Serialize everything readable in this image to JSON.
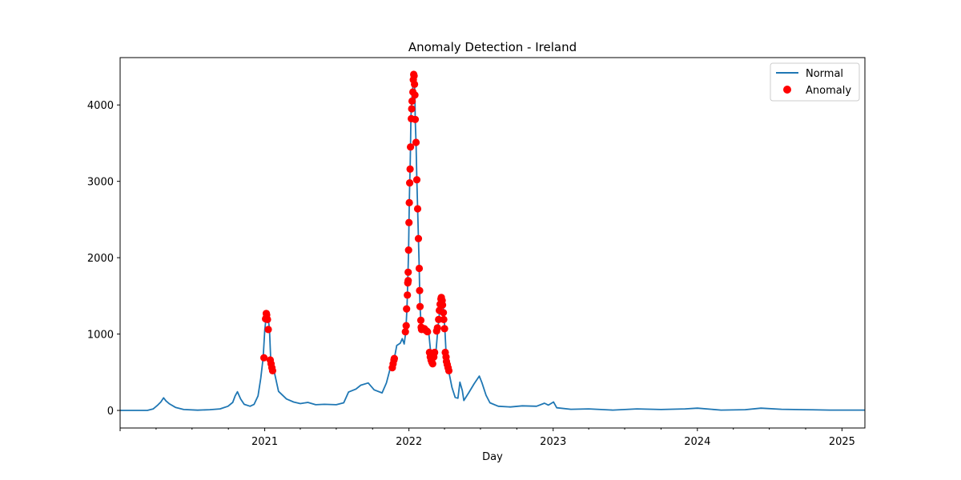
{
  "chart_data": {
    "type": "line",
    "title": "Anomaly Detection - Ireland",
    "xlabel": "Day",
    "ylabel": "",
    "xlim": [
      "2020-01-01",
      "2025-02-28"
    ],
    "ylim": [
      -230,
      4620
    ],
    "x_ticks": [
      "2021",
      "2022",
      "2023",
      "2024",
      "2025"
    ],
    "y_ticks": [
      0,
      1000,
      2000,
      3000,
      4000
    ],
    "grid": false,
    "legend": {
      "position": "top-right",
      "entries": [
        "Normal",
        "Anomaly"
      ]
    },
    "colors": {
      "normal": "#1f77b4",
      "anomaly": "#ff0000"
    },
    "series": [
      {
        "name": "Normal",
        "kind": "line",
        "points": [
          [
            "2020-01-01",
            0
          ],
          [
            "2020-02-15",
            0
          ],
          [
            "2020-03-10",
            0
          ],
          [
            "2020-03-25",
            20
          ],
          [
            "2020-04-05",
            70
          ],
          [
            "2020-04-13",
            110
          ],
          [
            "2020-04-20",
            165
          ],
          [
            "2020-04-26",
            125
          ],
          [
            "2020-05-05",
            85
          ],
          [
            "2020-05-20",
            40
          ],
          [
            "2020-06-10",
            12
          ],
          [
            "2020-07-15",
            4
          ],
          [
            "2020-08-15",
            10
          ],
          [
            "2020-09-10",
            20
          ],
          [
            "2020-09-30",
            55
          ],
          [
            "2020-10-12",
            105
          ],
          [
            "2020-10-18",
            190
          ],
          [
            "2020-10-24",
            245
          ],
          [
            "2020-11-01",
            150
          ],
          [
            "2020-11-10",
            80
          ],
          [
            "2020-11-25",
            55
          ],
          [
            "2020-12-05",
            80
          ],
          [
            "2020-12-15",
            190
          ],
          [
            "2020-12-22",
            420
          ],
          [
            "2020-12-28",
            690
          ],
          [
            "2021-01-01",
            1050
          ],
          [
            "2021-01-04",
            1200
          ],
          [
            "2021-01-07",
            1280
          ],
          [
            "2021-01-10",
            1200
          ],
          [
            "2021-01-13",
            1060
          ],
          [
            "2021-01-16",
            680
          ],
          [
            "2021-01-19",
            600
          ],
          [
            "2021-01-22",
            560
          ],
          [
            "2021-01-25",
            510
          ],
          [
            "2021-02-05",
            250
          ],
          [
            "2021-02-25",
            150
          ],
          [
            "2021-03-15",
            110
          ],
          [
            "2021-04-01",
            90
          ],
          [
            "2021-04-20",
            105
          ],
          [
            "2021-05-10",
            75
          ],
          [
            "2021-06-01",
            80
          ],
          [
            "2021-07-01",
            75
          ],
          [
            "2021-07-20",
            100
          ],
          [
            "2021-08-01",
            240
          ],
          [
            "2021-08-20",
            280
          ],
          [
            "2021-09-01",
            330
          ],
          [
            "2021-09-20",
            360
          ],
          [
            "2021-10-05",
            270
          ],
          [
            "2021-10-25",
            230
          ],
          [
            "2021-11-05",
            360
          ],
          [
            "2021-11-15",
            560
          ],
          [
            "2021-11-20",
            650
          ],
          [
            "2021-11-25",
            680
          ],
          [
            "2021-12-01",
            850
          ],
          [
            "2021-12-10",
            880
          ],
          [
            "2021-12-15",
            940
          ],
          [
            "2021-12-20",
            870
          ],
          [
            "2021-12-24",
            1030
          ],
          [
            "2021-12-27",
            1340
          ],
          [
            "2021-12-29",
            1700
          ],
          [
            "2021-12-31",
            2100
          ],
          [
            "2022-01-01",
            2460
          ],
          [
            "2022-01-02",
            2720
          ],
          [
            "2022-01-03",
            2980
          ],
          [
            "2022-01-04",
            3160
          ],
          [
            "2022-01-05",
            3450
          ],
          [
            "2022-01-06",
            3820
          ],
          [
            "2022-01-07",
            3950
          ],
          [
            "2022-01-08",
            4060
          ],
          [
            "2022-01-10",
            4180
          ],
          [
            "2022-01-12",
            4320
          ],
          [
            "2022-01-14",
            4400
          ],
          [
            "2022-01-15",
            4280
          ],
          [
            "2022-01-16",
            4140
          ],
          [
            "2022-01-17",
            3800
          ],
          [
            "2022-01-19",
            3510
          ],
          [
            "2022-01-21",
            3020
          ],
          [
            "2022-01-23",
            2640
          ],
          [
            "2022-01-25",
            2250
          ],
          [
            "2022-01-27",
            1860
          ],
          [
            "2022-01-28",
            1570
          ],
          [
            "2022-01-29",
            1360
          ],
          [
            "2022-01-31",
            1180
          ],
          [
            "2022-02-02",
            1090
          ],
          [
            "2022-02-05",
            1070
          ],
          [
            "2022-02-10",
            1060
          ],
          [
            "2022-02-15",
            1040
          ],
          [
            "2022-02-20",
            1030
          ],
          [
            "2022-02-25",
            760
          ],
          [
            "2022-03-01",
            650
          ],
          [
            "2022-03-05",
            620
          ],
          [
            "2022-03-10",
            750
          ],
          [
            "2022-03-15",
            1060
          ],
          [
            "2022-03-20",
            1310
          ],
          [
            "2022-03-25",
            1470
          ],
          [
            "2022-03-28",
            1420
          ],
          [
            "2022-03-31",
            1200
          ],
          [
            "2022-04-02",
            1070
          ],
          [
            "2022-04-05",
            750
          ],
          [
            "2022-04-08",
            640
          ],
          [
            "2022-04-11",
            530
          ],
          [
            "2022-04-20",
            300
          ],
          [
            "2022-04-28",
            170
          ],
          [
            "2022-05-05",
            160
          ],
          [
            "2022-05-10",
            370
          ],
          [
            "2022-05-16",
            260
          ],
          [
            "2022-05-20",
            130
          ],
          [
            "2022-06-01",
            230
          ],
          [
            "2022-06-15",
            350
          ],
          [
            "2022-06-28",
            450
          ],
          [
            "2022-07-05",
            360
          ],
          [
            "2022-07-15",
            200
          ],
          [
            "2022-07-25",
            100
          ],
          [
            "2022-08-15",
            55
          ],
          [
            "2022-09-15",
            45
          ],
          [
            "2022-10-15",
            60
          ],
          [
            "2022-11-20",
            55
          ],
          [
            "2022-12-10",
            95
          ],
          [
            "2022-12-20",
            70
          ],
          [
            "2023-01-02",
            110
          ],
          [
            "2023-01-10",
            35
          ],
          [
            "2023-02-15",
            15
          ],
          [
            "2023-04-01",
            20
          ],
          [
            "2023-06-01",
            5
          ],
          [
            "2023-08-01",
            20
          ],
          [
            "2023-10-01",
            12
          ],
          [
            "2023-12-01",
            20
          ],
          [
            "2024-01-01",
            30
          ],
          [
            "2024-03-01",
            5
          ],
          [
            "2024-05-01",
            10
          ],
          [
            "2024-06-10",
            30
          ],
          [
            "2024-08-01",
            15
          ],
          [
            "2024-10-01",
            10
          ],
          [
            "2024-12-01",
            5
          ],
          [
            "2025-02-28",
            5
          ]
        ]
      },
      {
        "name": "Anomaly",
        "kind": "scatter",
        "points": [
          [
            "2020-12-30",
            690
          ],
          [
            "2021-01-03",
            1200
          ],
          [
            "2021-01-05",
            1270
          ],
          [
            "2021-01-06",
            1250
          ],
          [
            "2021-01-08",
            1190
          ],
          [
            "2021-01-10",
            1060
          ],
          [
            "2021-01-15",
            660
          ],
          [
            "2021-01-17",
            610
          ],
          [
            "2021-01-19",
            560
          ],
          [
            "2021-01-21",
            520
          ],
          [
            "2021-11-20",
            560
          ],
          [
            "2021-11-22",
            610
          ],
          [
            "2021-11-24",
            660
          ],
          [
            "2021-11-25",
            680
          ],
          [
            "2021-12-23",
            1030
          ],
          [
            "2021-12-25",
            1110
          ],
          [
            "2021-12-26",
            1330
          ],
          [
            "2021-12-28",
            1510
          ],
          [
            "2021-12-29",
            1670
          ],
          [
            "2021-12-30",
            1810
          ],
          [
            "2021-12-30",
            1700
          ],
          [
            "2021-12-31",
            2100
          ],
          [
            "2022-01-01",
            2460
          ],
          [
            "2022-01-02",
            2720
          ],
          [
            "2022-01-03",
            2980
          ],
          [
            "2022-01-04",
            3160
          ],
          [
            "2022-01-05",
            3450
          ],
          [
            "2022-01-07",
            3820
          ],
          [
            "2022-01-08",
            3950
          ],
          [
            "2022-01-09",
            4050
          ],
          [
            "2022-01-11",
            4170
          ],
          [
            "2022-01-12",
            4330
          ],
          [
            "2022-01-13",
            4400
          ],
          [
            "2022-01-14",
            4380
          ],
          [
            "2022-01-15",
            4270
          ],
          [
            "2022-01-16",
            4130
          ],
          [
            "2022-01-17",
            3810
          ],
          [
            "2022-01-19",
            3510
          ],
          [
            "2022-01-21",
            3020
          ],
          [
            "2022-01-23",
            2640
          ],
          [
            "2022-01-25",
            2250
          ],
          [
            "2022-01-27",
            1860
          ],
          [
            "2022-01-28",
            1570
          ],
          [
            "2022-01-29",
            1360
          ],
          [
            "2022-01-31",
            1180
          ],
          [
            "2022-02-01",
            1090
          ],
          [
            "2022-02-02",
            1060
          ],
          [
            "2022-02-09",
            1070
          ],
          [
            "2022-02-12",
            1050
          ],
          [
            "2022-02-15",
            1040
          ],
          [
            "2022-02-17",
            1030
          ],
          [
            "2022-02-22",
            760
          ],
          [
            "2022-02-24",
            700
          ],
          [
            "2022-02-26",
            660
          ],
          [
            "2022-02-28",
            630
          ],
          [
            "2022-03-02",
            610
          ],
          [
            "2022-03-05",
            700
          ],
          [
            "2022-03-07",
            760
          ],
          [
            "2022-03-12",
            1040
          ],
          [
            "2022-03-14",
            1080
          ],
          [
            "2022-03-17",
            1190
          ],
          [
            "2022-03-19",
            1310
          ],
          [
            "2022-03-21",
            1390
          ],
          [
            "2022-03-23",
            1460
          ],
          [
            "2022-03-24",
            1480
          ],
          [
            "2022-03-26",
            1440
          ],
          [
            "2022-03-27",
            1380
          ],
          [
            "2022-03-29",
            1280
          ],
          [
            "2022-03-30",
            1190
          ],
          [
            "2022-04-01",
            1070
          ],
          [
            "2022-04-03",
            760
          ],
          [
            "2022-04-05",
            700
          ],
          [
            "2022-04-06",
            640
          ],
          [
            "2022-04-08",
            600
          ],
          [
            "2022-04-10",
            560
          ],
          [
            "2022-04-12",
            520
          ]
        ]
      }
    ]
  }
}
